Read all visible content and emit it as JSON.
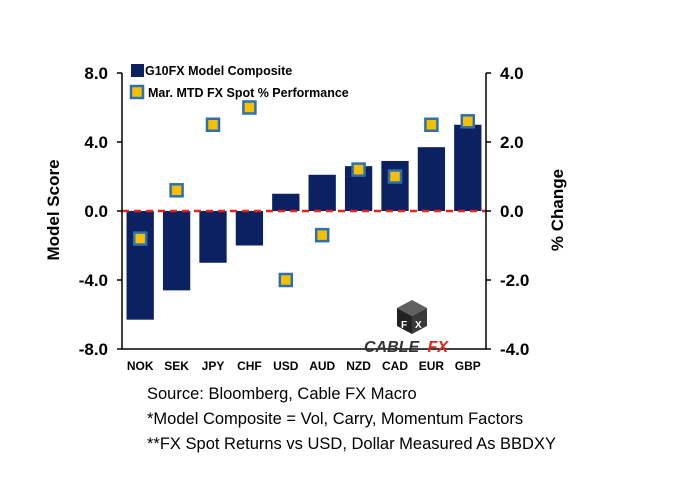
{
  "chart_data": {
    "type": "bar",
    "categories": [
      "NOK",
      "SEK",
      "JPY",
      "CHF",
      "USD",
      "AUD",
      "NZD",
      "CAD",
      "EUR",
      "GBP"
    ],
    "series": [
      {
        "name": "G10FX Model Composite",
        "axis": "left",
        "kind": "bar",
        "color": "#0b2161",
        "values": [
          -6.3,
          -4.6,
          -3.0,
          -2.0,
          1.0,
          2.1,
          2.6,
          2.9,
          3.7,
          5.0
        ]
      },
      {
        "name": "Mar.  MTD FX Spot % Performance",
        "axis": "right",
        "kind": "marker",
        "color": "#f5c000",
        "edge_color": "#2e6fb0",
        "values": [
          -0.8,
          0.6,
          2.5,
          3.0,
          -2.0,
          -0.7,
          1.2,
          1.0,
          2.5,
          2.6
        ]
      }
    ],
    "ylabel": "Model Score",
    "y2label": "% Change",
    "ylim": [
      -8,
      8
    ],
    "y2lim": [
      -4,
      4
    ],
    "yticks": [
      "8.0",
      "4.0",
      "0.0",
      "-4.0",
      "-8.0"
    ],
    "y2ticks": [
      "4.0",
      "2.0",
      "0.0",
      "-2.0",
      "-4.0"
    ],
    "zero_line_color": "#e8231a",
    "legend_position": "top-left"
  },
  "brand": {
    "name_part1": "CABLE",
    "name_part2": "FX",
    "dice_letters": [
      "F",
      "X"
    ]
  },
  "notes": {
    "source": "Source: Bloomberg, Cable FX Macro",
    "note1": "*Model Composite = Vol, Carry, Momentum Factors",
    "note2": "**FX Spot Returns vs USD, Dollar Measured As BBDXY"
  }
}
